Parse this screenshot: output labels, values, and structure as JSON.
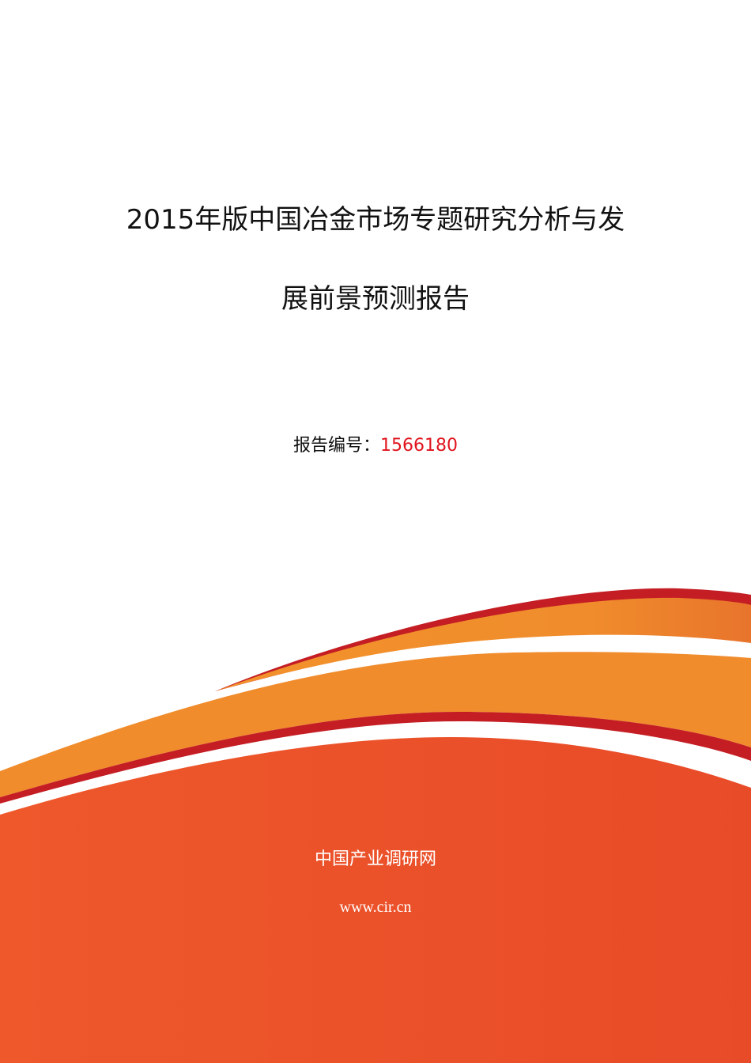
{
  "document": {
    "title_line1": "2015年版中国冶金市场专题研究分析与发",
    "title_line2": "展前景预测报告",
    "report_number_label": "报告编号：",
    "report_number": "1566180"
  },
  "footer": {
    "organization": "中国产业调研网",
    "website": "www.cir.cn"
  },
  "colors": {
    "accent_red": "#c41e24",
    "orange": "#f08c2c",
    "red_orange": "#e9512a",
    "number_red": "#e0141e"
  }
}
